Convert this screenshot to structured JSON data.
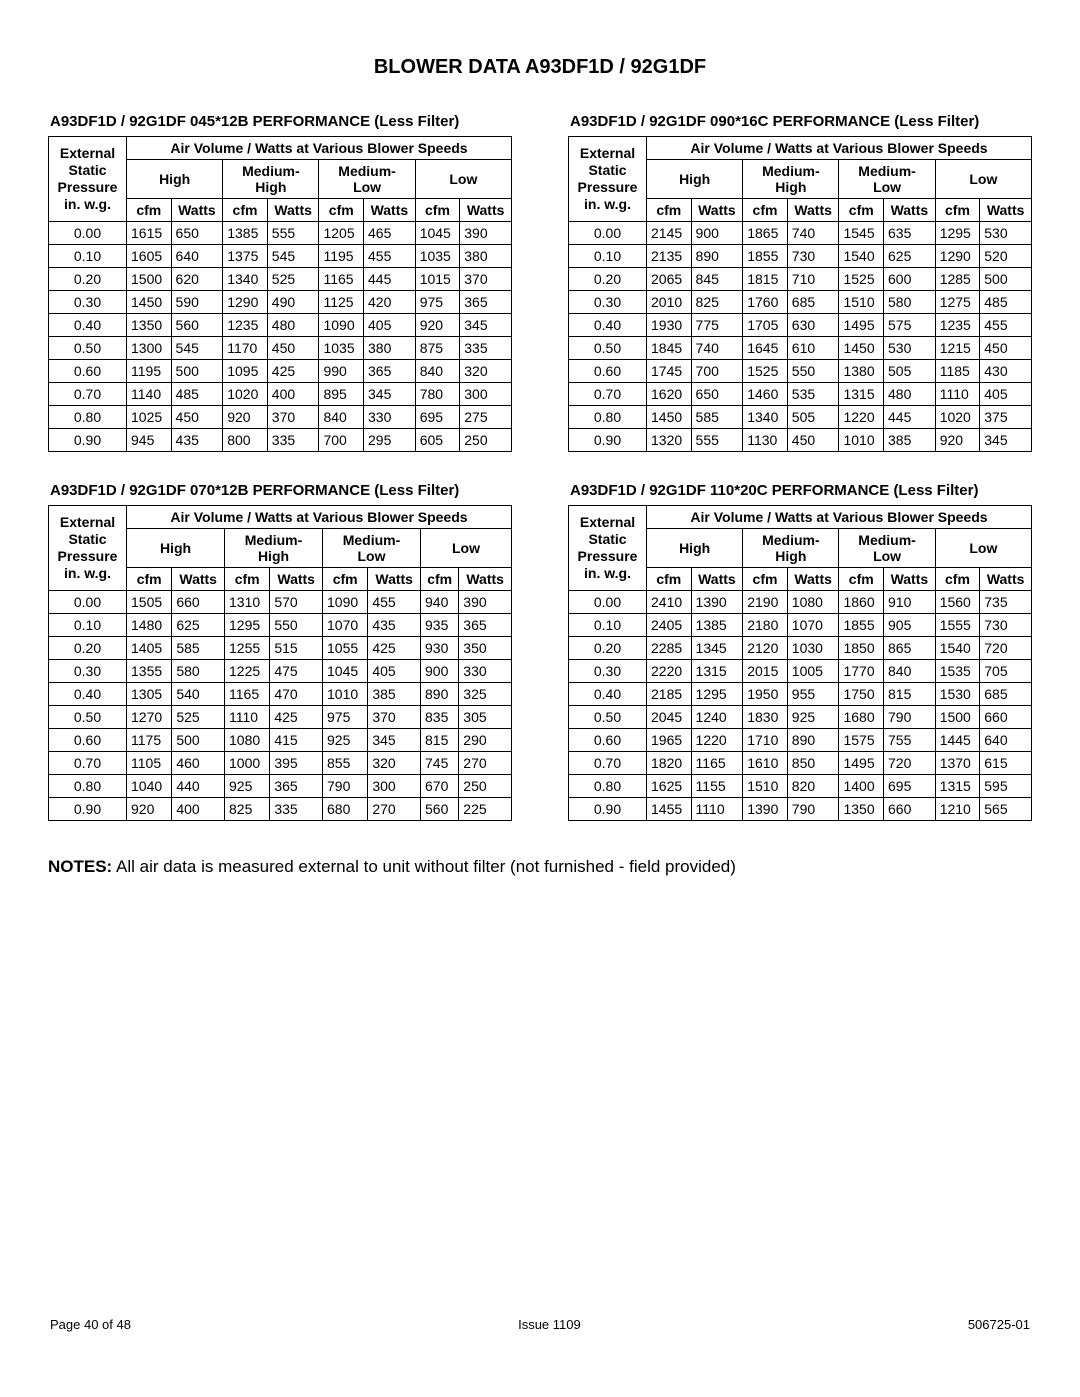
{
  "page_title": "BLOWER DATA A93DF1D / 92G1DF",
  "notes_label": "NOTES:",
  "notes_text": "All air data is measured external to unit without filter (not furnished - field provided)",
  "footer": {
    "left": "Page 40 of 48",
    "center": "Issue 1109",
    "right": "506725-01"
  },
  "header_strings": {
    "group_header": "Air Volume / Watts at Various Blower Speeds",
    "esp_line1": "External",
    "esp_line2": "Static",
    "esp_line3": "Pressure",
    "esp_line4": "in. w.g.",
    "speed_high": "High",
    "speed_mh": "Medium-\nHigh",
    "speed_ml": "Medium-\nLow",
    "speed_low": "Low",
    "cfm": "cfm",
    "watts": "Watts"
  },
  "tables": [
    {
      "caption": "A93DF1D / 92G1DF 045*12B PERFORMANCE (Less Filter)",
      "rows": [
        {
          "esp": "0.00",
          "h_cfm": "1615",
          "h_w": "650",
          "mh_cfm": "1385",
          "mh_w": "555",
          "ml_cfm": "1205",
          "ml_w": "465",
          "l_cfm": "1045",
          "l_w": "390"
        },
        {
          "esp": "0.10",
          "h_cfm": "1605",
          "h_w": "640",
          "mh_cfm": "1375",
          "mh_w": "545",
          "ml_cfm": "1195",
          "ml_w": "455",
          "l_cfm": "1035",
          "l_w": "380"
        },
        {
          "esp": "0.20",
          "h_cfm": "1500",
          "h_w": "620",
          "mh_cfm": "1340",
          "mh_w": "525",
          "ml_cfm": "1165",
          "ml_w": "445",
          "l_cfm": "1015",
          "l_w": "370"
        },
        {
          "esp": "0.30",
          "h_cfm": "1450",
          "h_w": "590",
          "mh_cfm": "1290",
          "mh_w": "490",
          "ml_cfm": "1125",
          "ml_w": "420",
          "l_cfm": "975",
          "l_w": "365"
        },
        {
          "esp": "0.40",
          "h_cfm": "1350",
          "h_w": "560",
          "mh_cfm": "1235",
          "mh_w": "480",
          "ml_cfm": "1090",
          "ml_w": "405",
          "l_cfm": "920",
          "l_w": "345"
        },
        {
          "esp": "0.50",
          "h_cfm": "1300",
          "h_w": "545",
          "mh_cfm": "1170",
          "mh_w": "450",
          "ml_cfm": "1035",
          "ml_w": "380",
          "l_cfm": "875",
          "l_w": "335"
        },
        {
          "esp": "0.60",
          "h_cfm": "1195",
          "h_w": "500",
          "mh_cfm": "1095",
          "mh_w": "425",
          "ml_cfm": "990",
          "ml_w": "365",
          "l_cfm": "840",
          "l_w": "320"
        },
        {
          "esp": "0.70",
          "h_cfm": "1140",
          "h_w": "485",
          "mh_cfm": "1020",
          "mh_w": "400",
          "ml_cfm": "895",
          "ml_w": "345",
          "l_cfm": "780",
          "l_w": "300"
        },
        {
          "esp": "0.80",
          "h_cfm": "1025",
          "h_w": "450",
          "mh_cfm": "920",
          "mh_w": "370",
          "ml_cfm": "840",
          "ml_w": "330",
          "l_cfm": "695",
          "l_w": "275"
        },
        {
          "esp": "0.90",
          "h_cfm": "945",
          "h_w": "435",
          "mh_cfm": "800",
          "mh_w": "335",
          "ml_cfm": "700",
          "ml_w": "295",
          "l_cfm": "605",
          "l_w": "250"
        }
      ]
    },
    {
      "caption": "A93DF1D / 92G1DF 090*16C PERFORMANCE (Less Filter)",
      "rows": [
        {
          "esp": "0.00",
          "h_cfm": "2145",
          "h_w": "900",
          "mh_cfm": "1865",
          "mh_w": "740",
          "ml_cfm": "1545",
          "ml_w": "635",
          "l_cfm": "1295",
          "l_w": "530"
        },
        {
          "esp": "0.10",
          "h_cfm": "2135",
          "h_w": "890",
          "mh_cfm": "1855",
          "mh_w": "730",
          "ml_cfm": "1540",
          "ml_w": "625",
          "l_cfm": "1290",
          "l_w": "520"
        },
        {
          "esp": "0.20",
          "h_cfm": "2065",
          "h_w": "845",
          "mh_cfm": "1815",
          "mh_w": "710",
          "ml_cfm": "1525",
          "ml_w": "600",
          "l_cfm": "1285",
          "l_w": "500"
        },
        {
          "esp": "0.30",
          "h_cfm": "2010",
          "h_w": "825",
          "mh_cfm": "1760",
          "mh_w": "685",
          "ml_cfm": "1510",
          "ml_w": "580",
          "l_cfm": "1275",
          "l_w": "485"
        },
        {
          "esp": "0.40",
          "h_cfm": "1930",
          "h_w": "775",
          "mh_cfm": "1705",
          "mh_w": "630",
          "ml_cfm": "1495",
          "ml_w": "575",
          "l_cfm": "1235",
          "l_w": "455"
        },
        {
          "esp": "0.50",
          "h_cfm": "1845",
          "h_w": "740",
          "mh_cfm": "1645",
          "mh_w": "610",
          "ml_cfm": "1450",
          "ml_w": "530",
          "l_cfm": "1215",
          "l_w": "450"
        },
        {
          "esp": "0.60",
          "h_cfm": "1745",
          "h_w": "700",
          "mh_cfm": "1525",
          "mh_w": "550",
          "ml_cfm": "1380",
          "ml_w": "505",
          "l_cfm": "1185",
          "l_w": "430"
        },
        {
          "esp": "0.70",
          "h_cfm": "1620",
          "h_w": "650",
          "mh_cfm": "1460",
          "mh_w": "535",
          "ml_cfm": "1315",
          "ml_w": "480",
          "l_cfm": "1110",
          "l_w": "405"
        },
        {
          "esp": "0.80",
          "h_cfm": "1450",
          "h_w": "585",
          "mh_cfm": "1340",
          "mh_w": "505",
          "ml_cfm": "1220",
          "ml_w": "445",
          "l_cfm": "1020",
          "l_w": "375"
        },
        {
          "esp": "0.90",
          "h_cfm": "1320",
          "h_w": "555",
          "mh_cfm": "1130",
          "mh_w": "450",
          "ml_cfm": "1010",
          "ml_w": "385",
          "l_cfm": "920",
          "l_w": "345"
        }
      ]
    },
    {
      "caption": "A93DF1D / 92G1DF 070*12B PERFORMANCE (Less Filter)",
      "rows": [
        {
          "esp": "0.00",
          "h_cfm": "1505",
          "h_w": "660",
          "mh_cfm": "1310",
          "mh_w": "570",
          "ml_cfm": "1090",
          "ml_w": "455",
          "l_cfm": "940",
          "l_w": "390"
        },
        {
          "esp": "0.10",
          "h_cfm": "1480",
          "h_w": "625",
          "mh_cfm": "1295",
          "mh_w": "550",
          "ml_cfm": "1070",
          "ml_w": "435",
          "l_cfm": "935",
          "l_w": "365"
        },
        {
          "esp": "0.20",
          "h_cfm": "1405",
          "h_w": "585",
          "mh_cfm": "1255",
          "mh_w": "515",
          "ml_cfm": "1055",
          "ml_w": "425",
          "l_cfm": "930",
          "l_w": "350"
        },
        {
          "esp": "0.30",
          "h_cfm": "1355",
          "h_w": "580",
          "mh_cfm": "1225",
          "mh_w": "475",
          "ml_cfm": "1045",
          "ml_w": "405",
          "l_cfm": "900",
          "l_w": "330"
        },
        {
          "esp": "0.40",
          "h_cfm": "1305",
          "h_w": "540",
          "mh_cfm": "1165",
          "mh_w": "470",
          "ml_cfm": "1010",
          "ml_w": "385",
          "l_cfm": "890",
          "l_w": "325"
        },
        {
          "esp": "0.50",
          "h_cfm": "1270",
          "h_w": "525",
          "mh_cfm": "1110",
          "mh_w": "425",
          "ml_cfm": "975",
          "ml_w": "370",
          "l_cfm": "835",
          "l_w": "305"
        },
        {
          "esp": "0.60",
          "h_cfm": "1175",
          "h_w": "500",
          "mh_cfm": "1080",
          "mh_w": "415",
          "ml_cfm": "925",
          "ml_w": "345",
          "l_cfm": "815",
          "l_w": "290"
        },
        {
          "esp": "0.70",
          "h_cfm": "1105",
          "h_w": "460",
          "mh_cfm": "1000",
          "mh_w": "395",
          "ml_cfm": "855",
          "ml_w": "320",
          "l_cfm": "745",
          "l_w": "270"
        },
        {
          "esp": "0.80",
          "h_cfm": "1040",
          "h_w": "440",
          "mh_cfm": "925",
          "mh_w": "365",
          "ml_cfm": "790",
          "ml_w": "300",
          "l_cfm": "670",
          "l_w": "250"
        },
        {
          "esp": "0.90",
          "h_cfm": "920",
          "h_w": "400",
          "mh_cfm": "825",
          "mh_w": "335",
          "ml_cfm": "680",
          "ml_w": "270",
          "l_cfm": "560",
          "l_w": "225"
        }
      ]
    },
    {
      "caption": "A93DF1D / 92G1DF 110*20C PERFORMANCE (Less Filter)",
      "rows": [
        {
          "esp": "0.00",
          "h_cfm": "2410",
          "h_w": "1390",
          "mh_cfm": "2190",
          "mh_w": "1080",
          "ml_cfm": "1860",
          "ml_w": "910",
          "l_cfm": "1560",
          "l_w": "735"
        },
        {
          "esp": "0.10",
          "h_cfm": "2405",
          "h_w": "1385",
          "mh_cfm": "2180",
          "mh_w": "1070",
          "ml_cfm": "1855",
          "ml_w": "905",
          "l_cfm": "1555",
          "l_w": "730"
        },
        {
          "esp": "0.20",
          "h_cfm": "2285",
          "h_w": "1345",
          "mh_cfm": "2120",
          "mh_w": "1030",
          "ml_cfm": "1850",
          "ml_w": "865",
          "l_cfm": "1540",
          "l_w": "720"
        },
        {
          "esp": "0.30",
          "h_cfm": "2220",
          "h_w": "1315",
          "mh_cfm": "2015",
          "mh_w": "1005",
          "ml_cfm": "1770",
          "ml_w": "840",
          "l_cfm": "1535",
          "l_w": "705"
        },
        {
          "esp": "0.40",
          "h_cfm": "2185",
          "h_w": "1295",
          "mh_cfm": "1950",
          "mh_w": "955",
          "ml_cfm": "1750",
          "ml_w": "815",
          "l_cfm": "1530",
          "l_w": "685"
        },
        {
          "esp": "0.50",
          "h_cfm": "2045",
          "h_w": "1240",
          "mh_cfm": "1830",
          "mh_w": "925",
          "ml_cfm": "1680",
          "ml_w": "790",
          "l_cfm": "1500",
          "l_w": "660"
        },
        {
          "esp": "0.60",
          "h_cfm": "1965",
          "h_w": "1220",
          "mh_cfm": "1710",
          "mh_w": "890",
          "ml_cfm": "1575",
          "ml_w": "755",
          "l_cfm": "1445",
          "l_w": "640"
        },
        {
          "esp": "0.70",
          "h_cfm": "1820",
          "h_w": "1165",
          "mh_cfm": "1610",
          "mh_w": "850",
          "ml_cfm": "1495",
          "ml_w": "720",
          "l_cfm": "1370",
          "l_w": "615"
        },
        {
          "esp": "0.80",
          "h_cfm": "1625",
          "h_w": "1155",
          "mh_cfm": "1510",
          "mh_w": "820",
          "ml_cfm": "1400",
          "ml_w": "695",
          "l_cfm": "1315",
          "l_w": "595"
        },
        {
          "esp": "0.90",
          "h_cfm": "1455",
          "h_w": "1110",
          "mh_cfm": "1390",
          "mh_w": "790",
          "ml_cfm": "1350",
          "ml_w": "660",
          "l_cfm": "1210",
          "l_w": "565"
        }
      ]
    }
  ]
}
